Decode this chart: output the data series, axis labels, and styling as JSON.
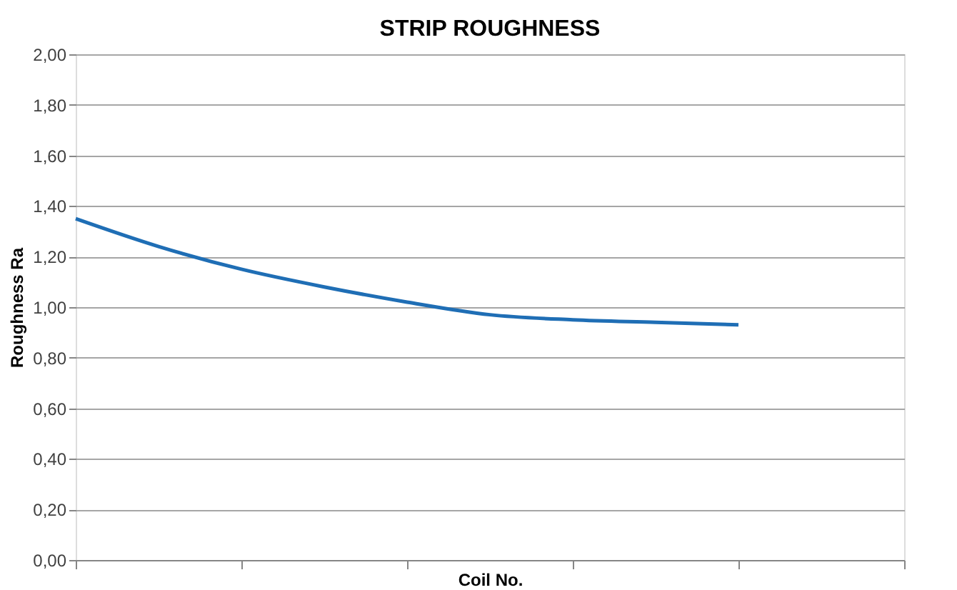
{
  "chart_data": {
    "type": "line",
    "title": "STRIP ROUGHNESS",
    "xlabel": "Coil No.",
    "ylabel": "Roughness Ra",
    "categories": [
      null,
      null,
      null,
      null,
      null,
      null,
      null,
      null,
      null,
      null,
      null
    ],
    "series": [
      {
        "color": "#1f6eb5",
        "values": [
          1.35,
          1.24,
          1.15,
          1.08,
          1.02,
          0.97,
          0.95,
          0.94,
          0.93,
          null,
          null
        ]
      }
    ],
    "ylim": [
      0,
      2
    ],
    "yticks": [
      {
        "value": 0,
        "label": "0,00"
      },
      {
        "value": 0.2,
        "label": "0,20"
      },
      {
        "value": 0.4,
        "label": "0,40"
      },
      {
        "value": 0.6,
        "label": "0,60"
      },
      {
        "value": 0.8,
        "label": "0,80"
      },
      {
        "value": 1,
        "label": "1,00"
      },
      {
        "value": 1.2,
        "label": "1,20"
      },
      {
        "value": 1.4,
        "label": "1,40"
      },
      {
        "value": 1.6,
        "label": "1,60"
      },
      {
        "value": 1.8,
        "label": "1,80"
      },
      {
        "value": 2,
        "label": "2,00"
      }
    ],
    "grid": "y",
    "marker": "none",
    "line_style": "solid",
    "tick_labels": "y"
  }
}
